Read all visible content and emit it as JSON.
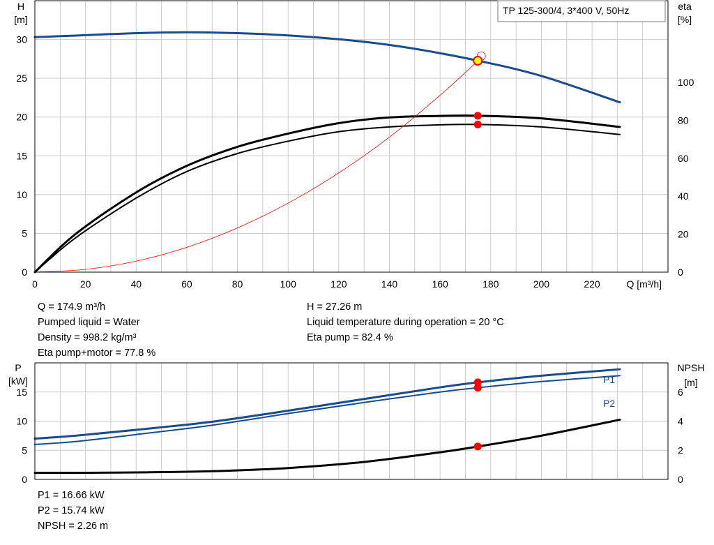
{
  "chart_data": [
    {
      "type": "line",
      "title": "TP 125-300/4, 3*400 V, 50Hz",
      "xlabel": "Q [m³/h]",
      "ylabel_left": [
        "H",
        "[m]"
      ],
      "ylabel_right": [
        "eta",
        "[%]"
      ],
      "xlim": [
        0,
        250
      ],
      "ylim_left": [
        0,
        35
      ],
      "ylim_right": [
        0,
        143
      ],
      "x_ticks": [
        "0",
        "20",
        "40",
        "60",
        "80",
        "100",
        "120",
        "140",
        "160",
        "180",
        "200",
        "220"
      ],
      "y_ticks_left": [
        "0",
        "5",
        "10",
        "15",
        "20",
        "25",
        "30"
      ],
      "y_ticks_right": [
        "0",
        "20",
        "40",
        "60",
        "80",
        "100"
      ],
      "grid": true,
      "series": [
        {
          "name": "H",
          "axis": "left",
          "color": "#1a4c8c",
          "x": [
            0,
            16,
            30,
            50,
            70,
            90,
            110,
            130,
            150,
            175,
            200,
            231
          ],
          "y": [
            30.3,
            30.5,
            30.7,
            30.9,
            30.9,
            30.7,
            30.3,
            29.7,
            28.8,
            27.26,
            25.3,
            21.9
          ]
        },
        {
          "name": "Eta pump",
          "axis": "right",
          "color": "#000000",
          "x": [
            0,
            16,
            40,
            60,
            80,
            100,
            120,
            140,
            160,
            175,
            200,
            231
          ],
          "y": [
            0,
            20,
            42,
            56,
            66,
            73,
            78.5,
            81.5,
            82.3,
            82.4,
            81,
            76.5
          ]
        },
        {
          "name": "Eta pump+motor",
          "axis": "right",
          "color": "#000000",
          "x": [
            0,
            16,
            40,
            60,
            80,
            100,
            120,
            140,
            160,
            175,
            200,
            231
          ],
          "y": [
            0,
            18,
            39,
            53,
            62.5,
            69,
            74,
            76.5,
            77.6,
            77.8,
            76.5,
            72.5
          ]
        },
        {
          "name": "Operating curve",
          "axis": "left",
          "color": "#ff0000",
          "x": [
            0,
            20,
            40,
            60,
            80,
            100,
            120,
            140,
            160,
            175
          ],
          "y": [
            0,
            0.36,
            1.42,
            3.2,
            5.7,
            8.9,
            12.8,
            17.4,
            22.8,
            27.26
          ]
        }
      ],
      "operating_point": {
        "x": 174.9,
        "H": 27.26,
        "eta_pump": 82.4,
        "eta_pump_motor": 77.8
      }
    },
    {
      "type": "line",
      "xlabel": "",
      "ylabel_left": [
        "P",
        "[kW]"
      ],
      "ylabel_right": [
        "NPSH",
        "[m]"
      ],
      "xlim": [
        0,
        250
      ],
      "ylim_left": [
        0,
        20
      ],
      "ylim_right": [
        0,
        8
      ],
      "y_ticks_left": [
        "0",
        "5",
        "10",
        "15"
      ],
      "y_ticks_right": [
        "0",
        "2",
        "4",
        "6"
      ],
      "grid": true,
      "series": [
        {
          "name": "P1",
          "axis": "left",
          "color": "#1a4c8c",
          "x": [
            0,
            16,
            40,
            70,
            100,
            130,
            160,
            175,
            200,
            231
          ],
          "y": [
            7.0,
            7.5,
            8.5,
            9.9,
            11.8,
            13.8,
            15.8,
            16.66,
            17.8,
            18.9
          ]
        },
        {
          "name": "P2",
          "axis": "left",
          "color": "#1a4c8c",
          "x": [
            0,
            16,
            40,
            70,
            100,
            130,
            160,
            175,
            200,
            231
          ],
          "y": [
            6.0,
            6.5,
            7.7,
            9.3,
            11.3,
            13.2,
            15.0,
            15.74,
            16.8,
            17.8
          ]
        },
        {
          "name": "NPSH",
          "axis": "right",
          "color": "#000000",
          "x": [
            0,
            16,
            40,
            70,
            100,
            130,
            160,
            175,
            200,
            231
          ],
          "y": [
            0.45,
            0.45,
            0.48,
            0.56,
            0.78,
            1.2,
            1.86,
            2.26,
            3.0,
            4.1
          ]
        }
      ],
      "operating_point": {
        "x": 174.9,
        "P1": 16.66,
        "P2": 15.74,
        "NPSH": 2.26
      }
    }
  ],
  "info_top": {
    "q": "Q = 174.9 m³/h",
    "liquid": "Pumped liquid = Water",
    "density": "Density = 998.2 kg/m³",
    "eta_pm": "Eta pump+motor = 77.8 %",
    "h": "H = 27.26 m",
    "temp": "Liquid temperature during operation = 20 °C",
    "eta_p": "Eta pump = 82.4 %"
  },
  "info_bottom": {
    "p1": "P1 = 16.66 kW",
    "p2": "P2 = 15.74 kW",
    "npsh": "NPSH = 2.26 m"
  },
  "colors": {
    "curve_blue": "#1a4c8c",
    "curve_black": "#000000",
    "system_red": "#ff0000",
    "marker_red": "#ff0000",
    "marker_yellow": "#ffff00",
    "grid": "#cccccc"
  }
}
